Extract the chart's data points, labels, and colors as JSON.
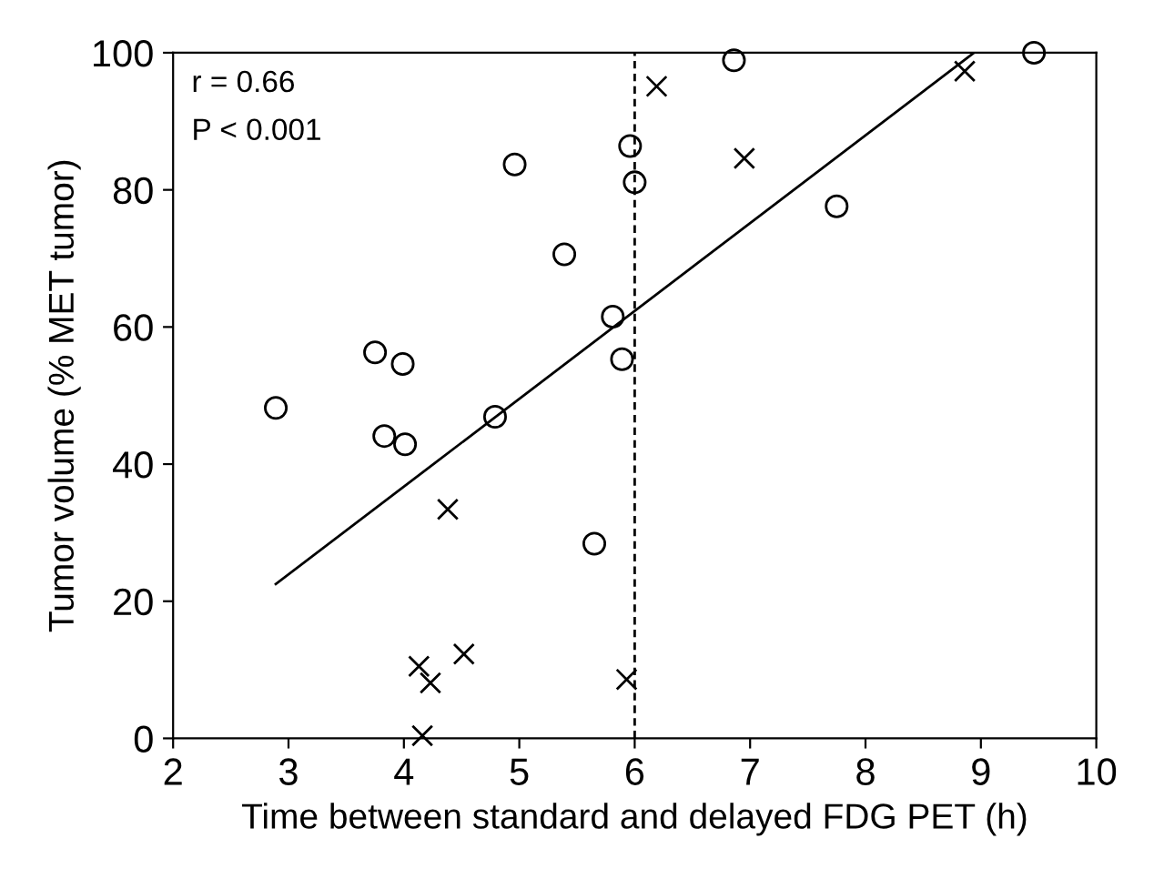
{
  "chart_data": {
    "type": "scatter",
    "xlabel": "Time between standard and delayed FDG PET (h)",
    "ylabel": "Tumor volume (% MET tumor)",
    "xlim": [
      2,
      10
    ],
    "xticks": [
      2,
      3,
      4,
      5,
      6,
      7,
      8,
      9,
      10
    ],
    "ylim": [
      0,
      100
    ],
    "yticks": [
      0,
      20,
      40,
      60,
      80,
      100
    ],
    "grid": false,
    "legend": false,
    "series": [
      {
        "marker": "circle",
        "color": "#000000",
        "x": [
          2.89,
          3.75,
          3.99,
          3.83,
          4.01,
          4.79,
          4.96,
          5.39,
          5.65,
          5.81,
          5.89,
          5.96,
          6.0,
          6.86,
          7.75,
          9.46
        ],
        "values": [
          48.2,
          56.3,
          54.6,
          44.1,
          42.9,
          46.9,
          83.7,
          70.6,
          28.4,
          61.5,
          55.3,
          86.4,
          81.1,
          98.9,
          77.6,
          100.0
        ]
      },
      {
        "marker": "cross",
        "color": "#000000",
        "x": [
          4.38,
          4.13,
          4.23,
          4.52,
          4.16,
          5.93,
          6.19,
          6.95,
          8.86
        ],
        "values": [
          33.4,
          10.5,
          8.1,
          12.3,
          0.4,
          8.6,
          95.1,
          84.6,
          97.3
        ]
      },
      {
        "type": "line",
        "marker": "none",
        "line_style": "solid",
        "color": "#000000",
        "x": [
          2.89,
          8.94
        ],
        "values": [
          22.5,
          100
        ]
      }
    ],
    "ref_lines": [
      {
        "axis": "x",
        "value": 6,
        "label": null,
        "color": "#000000",
        "line_style": "dashed"
      }
    ],
    "annotations": [
      "r = 0.66",
      "P < 0.001"
    ]
  }
}
